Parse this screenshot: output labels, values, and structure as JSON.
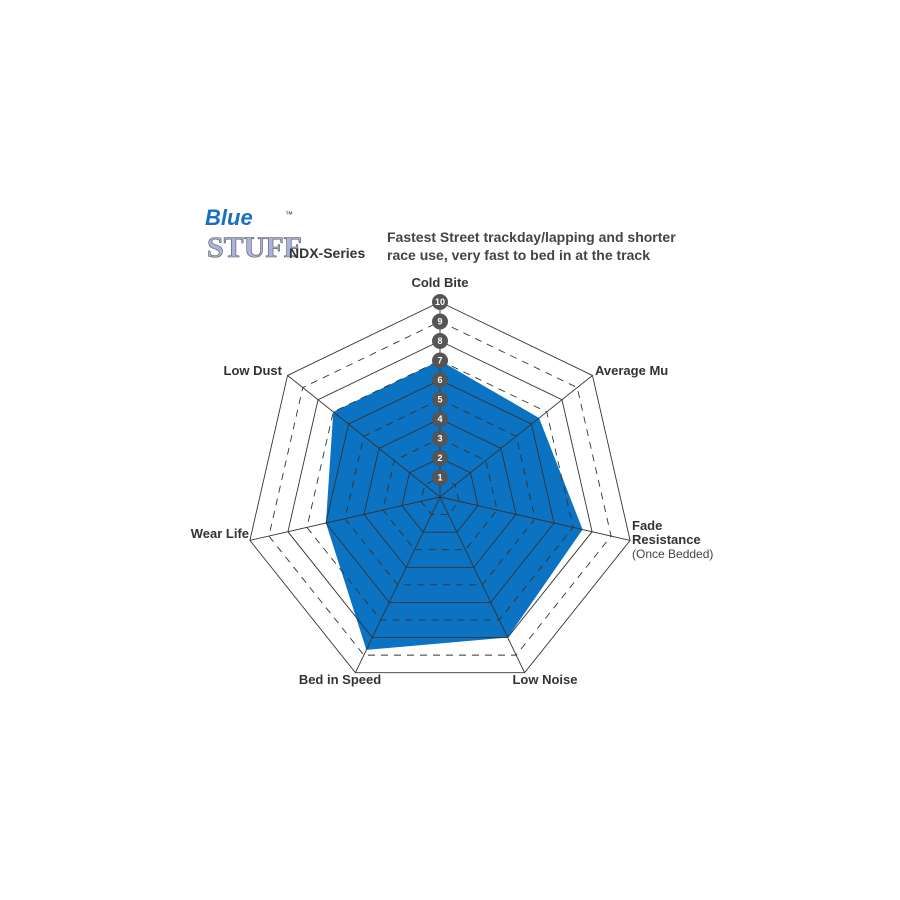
{
  "logo": {
    "text_top": "Blue",
    "text_bottom": "STUFF",
    "tm": "™"
  },
  "series_name": "NDX-Series",
  "description": [
    "Fastest Street trackday/lapping and shorter",
    "race use, very fast to bed in at the track"
  ],
  "chart_data": {
    "type": "radar",
    "axes": [
      {
        "label": "Cold Bite",
        "sub": ""
      },
      {
        "label": "Average Mu",
        "sub": ""
      },
      {
        "label": "Fade Resistance",
        "sub": "(Once Bedded)"
      },
      {
        "label": "Low Noise",
        "sub": ""
      },
      {
        "label": "Bed in Speed",
        "sub": ""
      },
      {
        "label": "Wear Life",
        "sub": ""
      },
      {
        "label": "Low Dust",
        "sub": ""
      }
    ],
    "values": [
      7,
      6.5,
      7.5,
      8,
      8.7,
      6,
      7
    ],
    "range": [
      0,
      10
    ],
    "ticks": [
      "1",
      "2",
      "3",
      "4",
      "5",
      "6",
      "7",
      "8",
      "9",
      "10"
    ],
    "fill_color": "#0b73c2",
    "grid_color": "#333333"
  }
}
